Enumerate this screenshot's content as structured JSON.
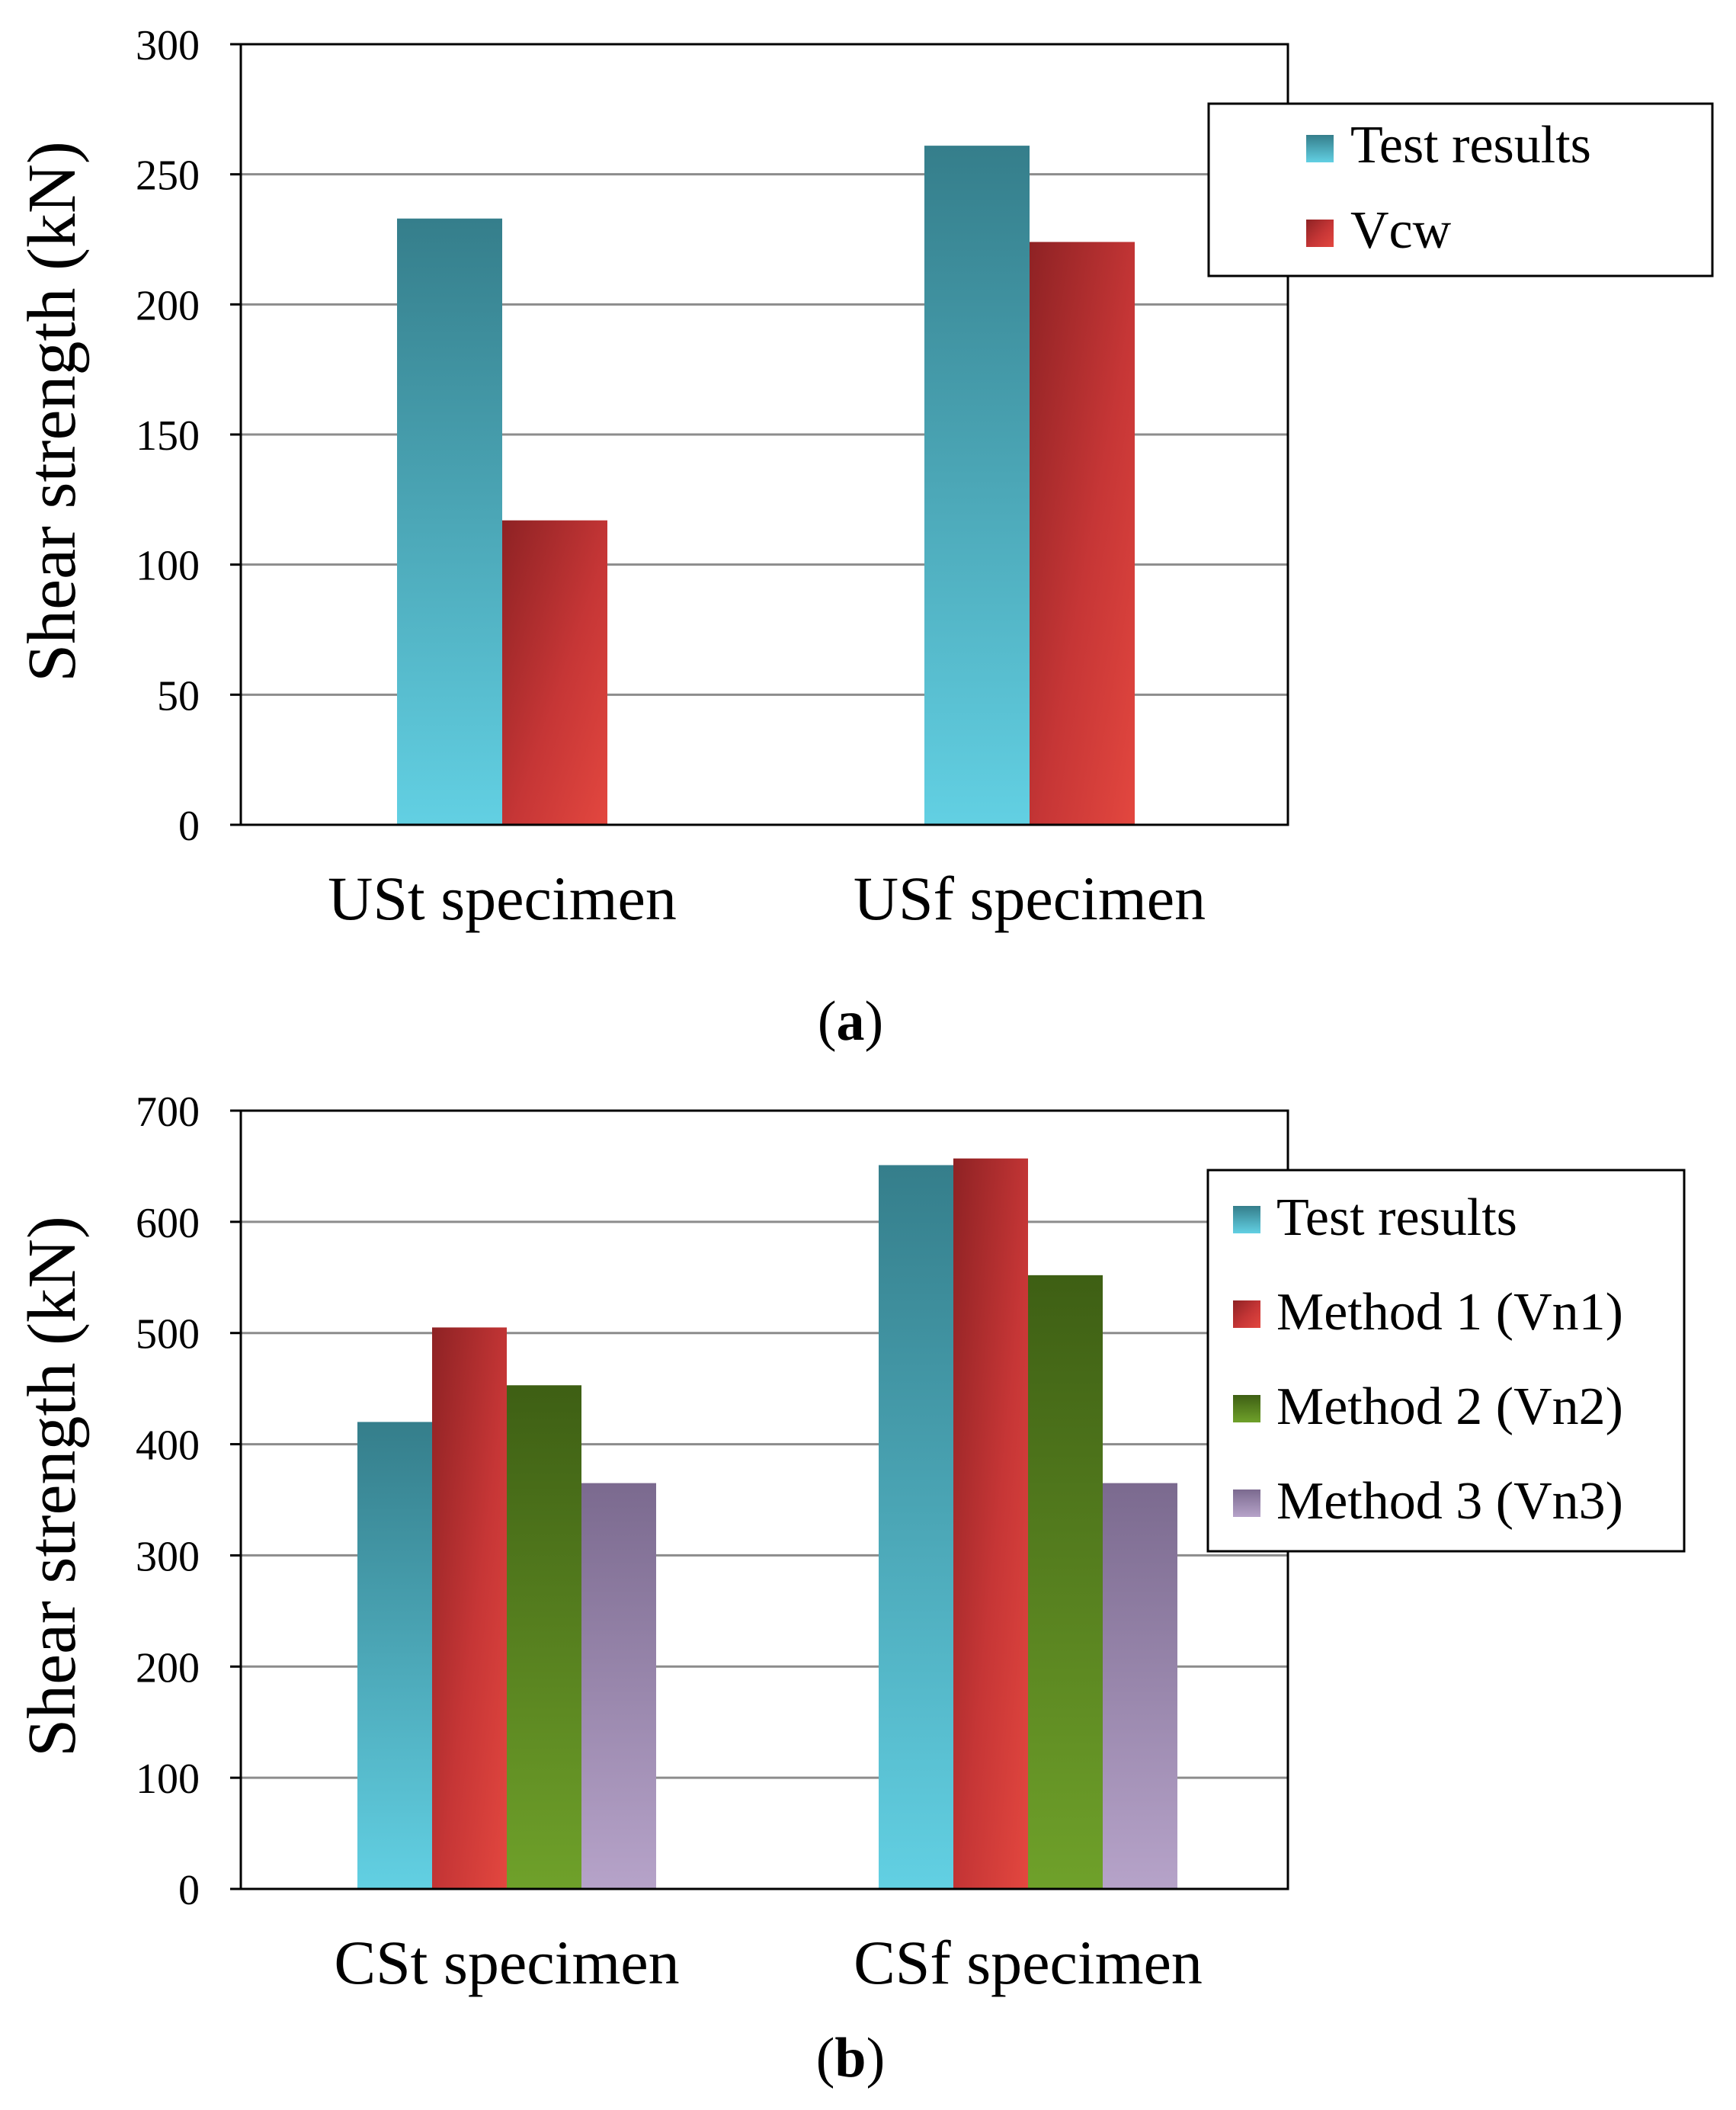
{
  "chart_data": [
    {
      "type": "bar",
      "panel_label": "a",
      "title": "",
      "xlabel": "",
      "ylabel": "Shear strength (kN)",
      "ylim": [
        0,
        300
      ],
      "yticks": [
        0,
        50,
        100,
        150,
        200,
        250,
        300
      ],
      "grid": true,
      "legend_position": "top-right",
      "categories": [
        "USt specimen",
        "USf specimen"
      ],
      "series": [
        {
          "name": "Test results",
          "values": [
            233,
            261
          ]
        },
        {
          "name": "Vcw",
          "values": [
            117,
            224
          ]
        }
      ]
    },
    {
      "type": "bar",
      "panel_label": "b",
      "title": "",
      "xlabel": "",
      "ylabel": "Shear strength (kN)",
      "ylim": [
        0,
        700
      ],
      "yticks": [
        0,
        100,
        200,
        300,
        400,
        500,
        600,
        700
      ],
      "grid": true,
      "legend_position": "right",
      "categories": [
        "CSt specimen",
        "CSf specimen"
      ],
      "series": [
        {
          "name": "Test results",
          "values": [
            420,
            651
          ]
        },
        {
          "name": "Method 1 (Vn1)",
          "values": [
            505,
            657
          ]
        },
        {
          "name": "Method 2 (Vn2)",
          "values": [
            453,
            552
          ]
        },
        {
          "name": "Method 3 (Vn3)",
          "values": [
            365,
            365
          ]
        }
      ]
    }
  ],
  "colors": {
    "Test results": [
      "#357e8b",
      "#62d0e3"
    ],
    "Vcw": [
      "#8e2224",
      "#e3473f"
    ],
    "Method 1 (Vn1)": [
      "#8e2224",
      "#e3473f"
    ],
    "Method 2 (Vn2)": [
      "#3e5f14",
      "#6fa12a"
    ],
    "Method 3 (Vn3)": [
      "#7b6a8f",
      "#b6a3c9"
    ],
    "grid": "#8c8c8c",
    "axis": "#000000"
  }
}
